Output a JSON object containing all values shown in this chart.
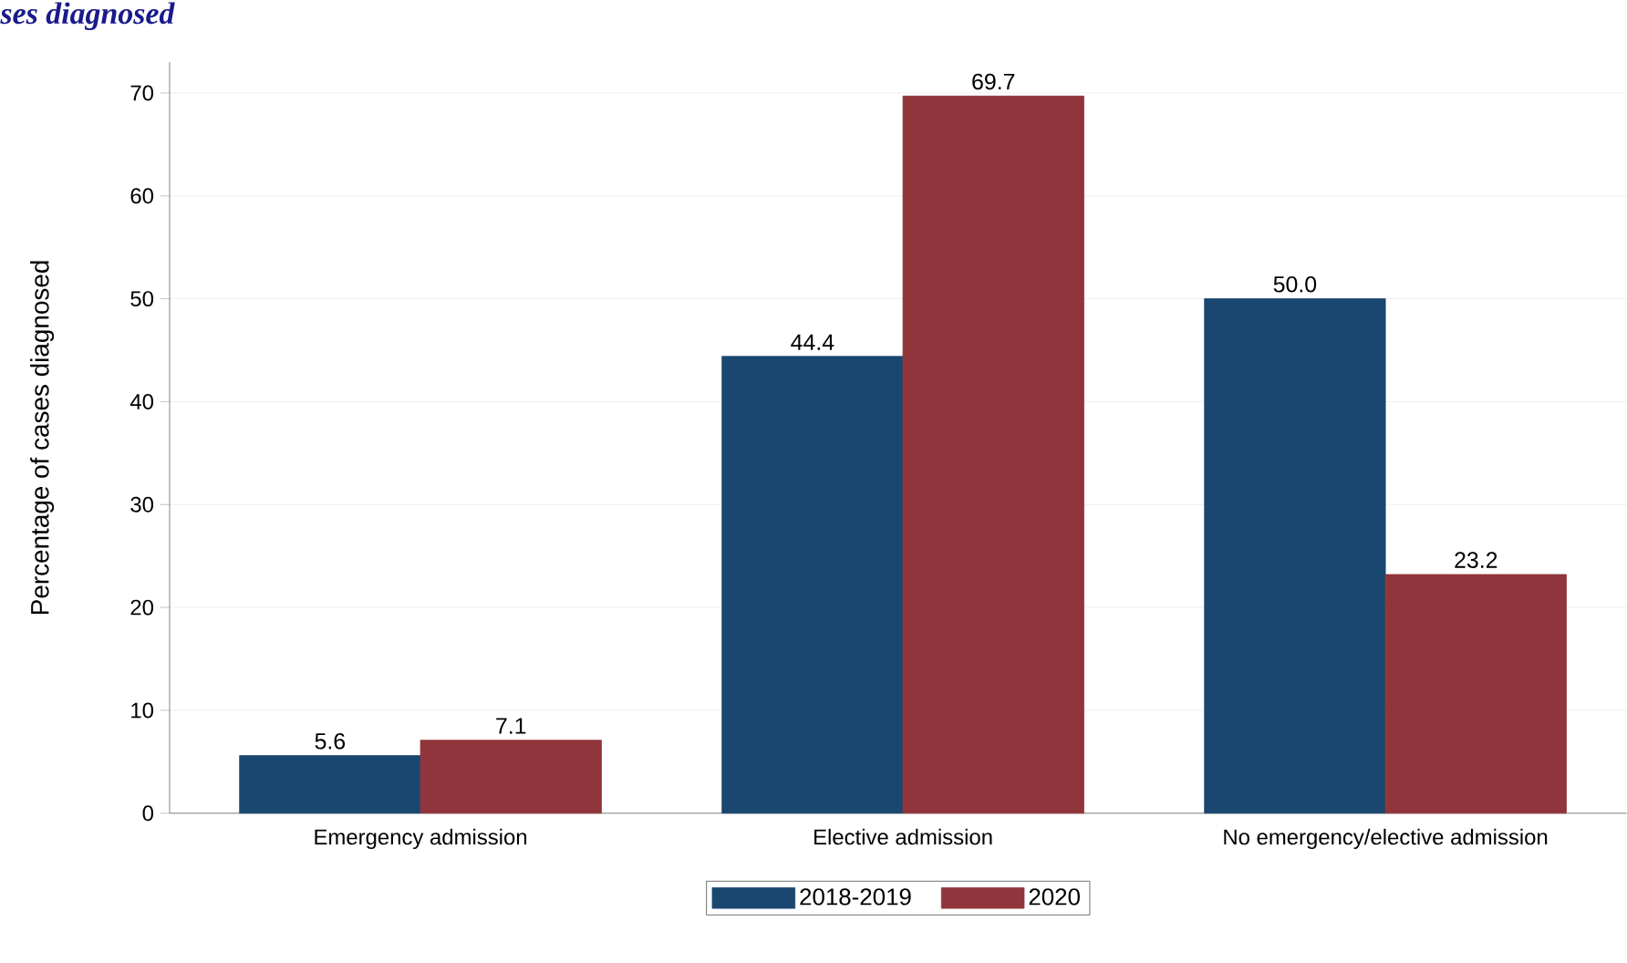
{
  "chart_data": {
    "type": "bar",
    "title": "ses diagnosed",
    "ylabel": "Percentage of cases diagnosed",
    "categories": [
      "Emergency admission",
      "Elective admission",
      "No emergency/elective admission"
    ],
    "series": [
      {
        "name": "2018-2019",
        "color": "#1a476f",
        "values": [
          5.6,
          44.4,
          50.0
        ],
        "value_labels": [
          "5.6",
          "44.4",
          "50.0"
        ]
      },
      {
        "name": "2020",
        "color": "#90353b",
        "values": [
          7.1,
          69.7,
          23.2
        ],
        "value_labels": [
          "7.1",
          "69.7",
          "23.2"
        ]
      }
    ],
    "ylim": [
      0,
      73
    ],
    "yticks": [
      0,
      10,
      20,
      30,
      40,
      50,
      60,
      70
    ],
    "grid": "y",
    "legend": "bottom"
  }
}
